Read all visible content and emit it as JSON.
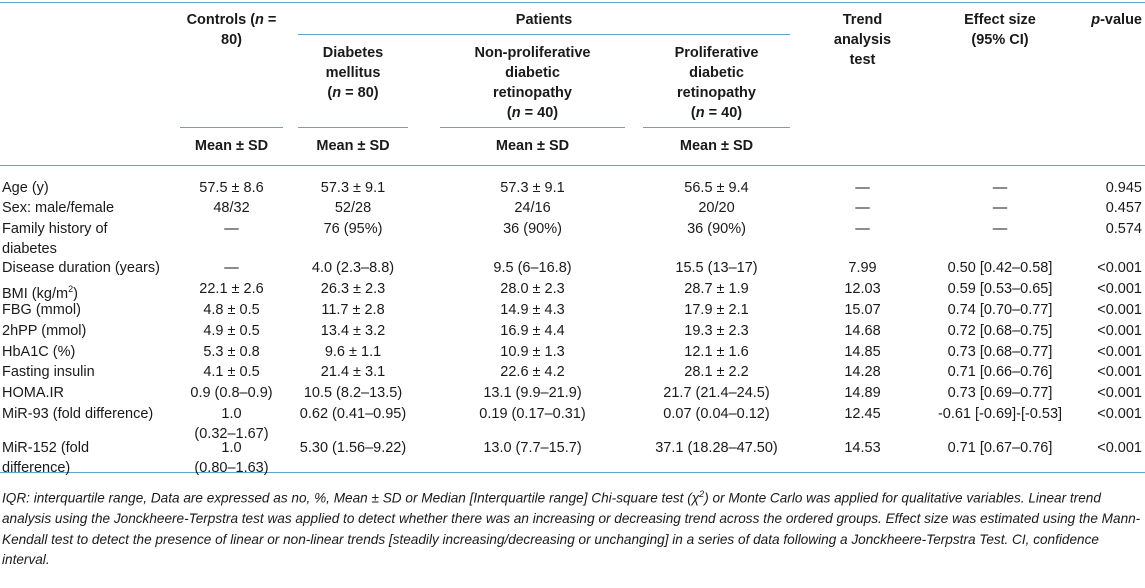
{
  "header": {
    "controls_line1": "Controls (",
    "controls_n": "n",
    "controls_line1_end": " =",
    "controls_line2": "80)",
    "patients": "Patients",
    "dm_line1": "Diabetes",
    "dm_line2": "mellitus",
    "dm_n_open": "(",
    "dm_n": "n",
    "dm_n_rest": " = 80)",
    "npdr_line1": "Non-proliferative",
    "npdr_line2": "diabetic",
    "npdr_line3": "retinopathy",
    "npdr_n_open": "(",
    "npdr_n": "n",
    "npdr_n_rest": " = 40)",
    "pdr_line1": "Proliferative",
    "pdr_line2": "diabetic",
    "pdr_line3": "retinopathy",
    "pdr_n_open": "(",
    "pdr_n": "n",
    "pdr_n_rest": " = 40)",
    "trend_line1": "Trend",
    "trend_line2": "analysis",
    "trend_line3": "test",
    "effect_line1": "Effect size",
    "effect_line2": "(95% CI)",
    "p_italic": "p",
    "p_rest": "-value",
    "mean_sd": "Mean ± SD"
  },
  "rows": [
    {
      "label": [
        "Age (y)"
      ],
      "controls": [
        "57.5 ± 8.6"
      ],
      "dm": [
        "57.3 ± 9.1"
      ],
      "npdr": [
        "57.3 ± 9.1"
      ],
      "pdr": [
        "56.5 ± 9.4"
      ],
      "trend": "—",
      "effect": "—",
      "p": "0.945"
    },
    {
      "label": [
        "Sex: male/female"
      ],
      "controls": [
        "48/32"
      ],
      "dm": [
        "52/28"
      ],
      "npdr": [
        "24/16"
      ],
      "pdr": [
        "20/20"
      ],
      "trend": "—",
      "effect": "—",
      "p": "0.457"
    },
    {
      "label": [
        "Family history of",
        "diabetes"
      ],
      "controls": [
        "—"
      ],
      "dm": [
        "76 (95%)"
      ],
      "npdr": [
        "36 (90%)"
      ],
      "pdr": [
        "36 (90%)"
      ],
      "trend": "—",
      "effect": "—",
      "p": "0.574"
    },
    {
      "label": [
        "Disease duration (years)"
      ],
      "controls": [
        "—"
      ],
      "dm": [
        "4.0 (2.3–8.8)"
      ],
      "npdr": [
        "9.5 (6–16.8)"
      ],
      "pdr": [
        "15.5 (13–17)"
      ],
      "trend": "7.99",
      "effect": "0.50 [0.42–0.58]",
      "p": "<0.001"
    },
    {
      "label": [
        "BMI (kg/m"
      ],
      "label_sup": "2",
      "label_after": ")",
      "controls": [
        "22.1 ± 2.6"
      ],
      "dm": [
        "26.3 ± 2.3"
      ],
      "npdr": [
        "28.0 ± 2.3"
      ],
      "pdr": [
        "28.7 ± 1.9"
      ],
      "trend": "12.03",
      "effect": "0.59 [0.53–0.65]",
      "p": "<0.001"
    },
    {
      "label": [
        "FBG (mmol)"
      ],
      "controls": [
        "4.8 ± 0.5"
      ],
      "dm": [
        "11.7 ± 2.8"
      ],
      "npdr": [
        "14.9 ± 4.3"
      ],
      "pdr": [
        "17.9 ± 2.1"
      ],
      "trend": "15.07",
      "effect": "0.74 [0.70–0.77]",
      "p": "<0.001"
    },
    {
      "label": [
        "2hPP (mmol)"
      ],
      "controls": [
        "4.9 ± 0.5"
      ],
      "dm": [
        "13.4 ± 3.2"
      ],
      "npdr": [
        "16.9 ± 4.4"
      ],
      "pdr": [
        "19.3 ± 2.3"
      ],
      "trend": "14.68",
      "effect": "0.72 [0.68–0.75]",
      "p": "<0.001"
    },
    {
      "label": [
        "HbA1C (%)"
      ],
      "controls": [
        "5.3 ± 0.8"
      ],
      "dm": [
        "9.6 ± 1.1"
      ],
      "npdr": [
        "10.9 ± 1.3"
      ],
      "pdr": [
        "12.1 ± 1.6"
      ],
      "trend": "14.85",
      "effect": "0.73 [0.68–0.77]",
      "p": "<0.001"
    },
    {
      "label": [
        "Fasting insulin"
      ],
      "controls": [
        "4.1 ± 0.5"
      ],
      "dm": [
        "21.4 ± 3.1"
      ],
      "npdr": [
        "22.6 ± 4.2"
      ],
      "pdr": [
        "28.1 ± 2.2"
      ],
      "trend": "14.28",
      "effect": "0.71 [0.66–0.76]",
      "p": "<0.001"
    },
    {
      "label": [
        "HOMA.IR"
      ],
      "controls": [
        "0.9 (0.8–0.9)"
      ],
      "dm": [
        "10.5 (8.2–13.5)"
      ],
      "npdr": [
        "13.1 (9.9–21.9)"
      ],
      "pdr": [
        "21.7 (21.4–24.5)"
      ],
      "trend": "14.89",
      "effect": "0.73 [0.69–0.77]",
      "p": "<0.001"
    },
    {
      "label": [
        "MiR-93 (fold difference)"
      ],
      "controls": [
        "1.0",
        "(0.32–1.67)"
      ],
      "dm": [
        "0.62 (0.41–0.95)"
      ],
      "npdr": [
        "0.19 (0.17–0.31)"
      ],
      "pdr": [
        "0.07 (0.04–0.12)"
      ],
      "trend": "12.45",
      "effect": "-0.61 [-0.69]-[-0.53]",
      "p": "<0.001"
    },
    {
      "label": [
        "MiR-152 (fold",
        "difference)"
      ],
      "controls": [
        "1.0",
        "(0.80–1.63)"
      ],
      "dm": [
        "5.30 (1.56–9.22)"
      ],
      "npdr": [
        "13.0 (7.7–15.7)"
      ],
      "pdr": [
        "37.1 (18.28–47.50)"
      ],
      "trend": "14.53",
      "effect": "0.71 [0.67–0.76]",
      "p": "<0.001"
    }
  ],
  "footnote_part1": "IQR: interquartile range, Data are expressed as no, %, Mean ± SD or Median [Interquartile range] Chi-square test (χ",
  "footnote_sup": "2",
  "footnote_part2": ") or Monte Carlo was applied for qualitative variables. Linear trend analysis using the Jonckheere-Terpstra test was applied to detect whether there was an increasing or decreasing trend across the ordered groups. Effect size was estimated using the Mann-Kendall test to detect the presence of linear or non-linear trends [steadily increasing/decreasing or unchanging] in a series of data following a Jonckheere-Terpstra Test. CI, confidence interval."
}
